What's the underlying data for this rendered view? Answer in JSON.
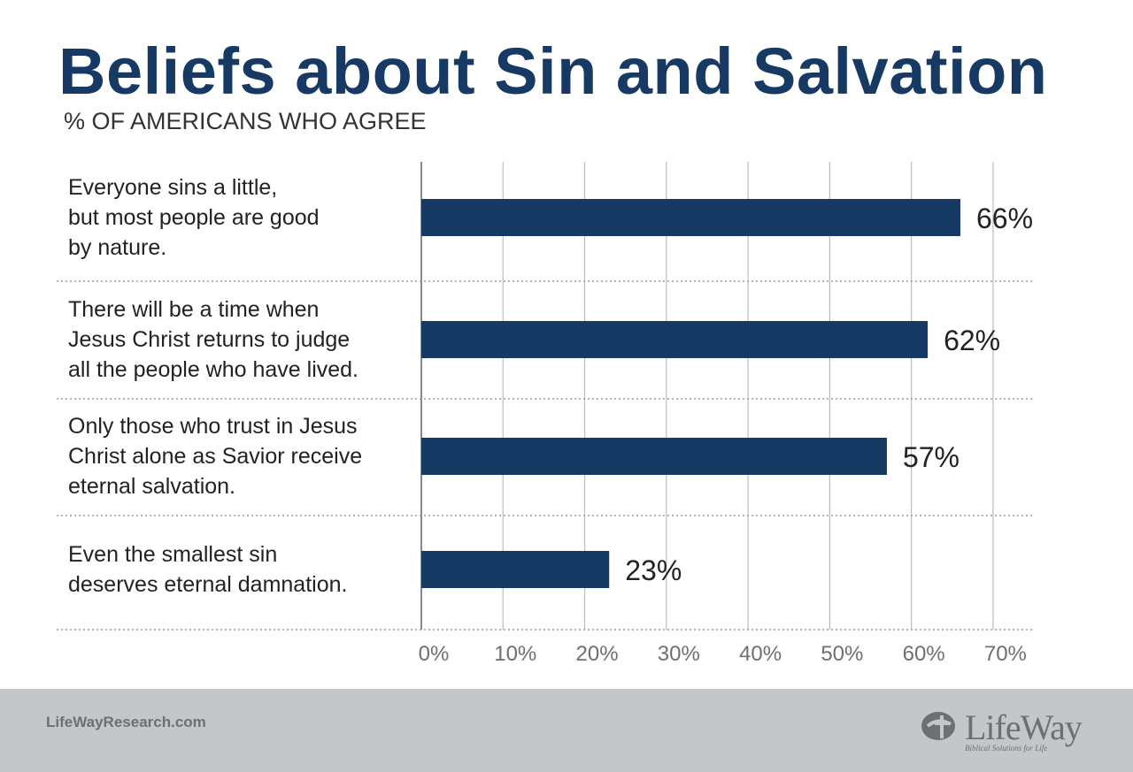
{
  "title": "Beliefs about Sin and Salvation",
  "subtitle": "% OF AMERICANS WHO AGREE",
  "chart_data": {
    "type": "bar",
    "orientation": "horizontal",
    "categories": [
      [
        "Everyone sins a little,",
        "but most people are good",
        "by nature."
      ],
      [
        "There will be a time when",
        "Jesus Christ returns to judge",
        "all the people who have lived."
      ],
      [
        "Only those who trust in Jesus",
        "Christ alone as Savior receive",
        "eternal salvation."
      ],
      [
        "Even the smallest sin",
        "deserves eternal damnation."
      ]
    ],
    "values": [
      66,
      62,
      57,
      23
    ],
    "value_labels": [
      "66%",
      "62%",
      "57%",
      "23%"
    ],
    "x_ticks": [
      0,
      10,
      20,
      30,
      40,
      50,
      60,
      70
    ],
    "x_tick_labels": [
      "0%",
      "10%",
      "20%",
      "30%",
      "40%",
      "50%",
      "60%",
      "70%"
    ],
    "xlim": [
      0,
      70
    ],
    "grid": true,
    "bar_color": "#163a63"
  },
  "footer": {
    "url": "LifeWayResearch.com",
    "logo_text": "LifeWay",
    "logo_tagline": "Biblical Solutions for Life"
  }
}
